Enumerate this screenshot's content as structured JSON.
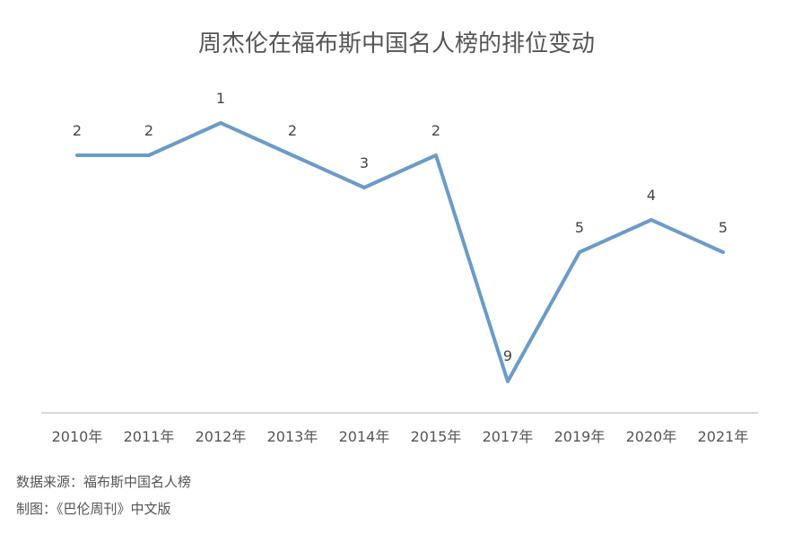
{
  "chart_data": {
    "type": "line",
    "title": "周杰伦在福布斯中国名人榜的排位变动",
    "categories": [
      "2010年",
      "2011年",
      "2012年",
      "2013年",
      "2014年",
      "2015年",
      "2017年",
      "2019年",
      "2020年",
      "2021年"
    ],
    "series": [
      {
        "values": [
          2,
          2,
          1,
          2,
          3,
          2,
          9,
          5,
          4,
          5
        ],
        "color": "#6a9bc9"
      }
    ],
    "y_range": [
      1,
      9
    ],
    "y_inverted": true,
    "grid": false,
    "data_labels": true,
    "axis_color": "#cccccc"
  },
  "footer": {
    "source": "数据来源：福布斯中国名人榜",
    "credit": "制图：《巴伦周刊》中文版"
  }
}
